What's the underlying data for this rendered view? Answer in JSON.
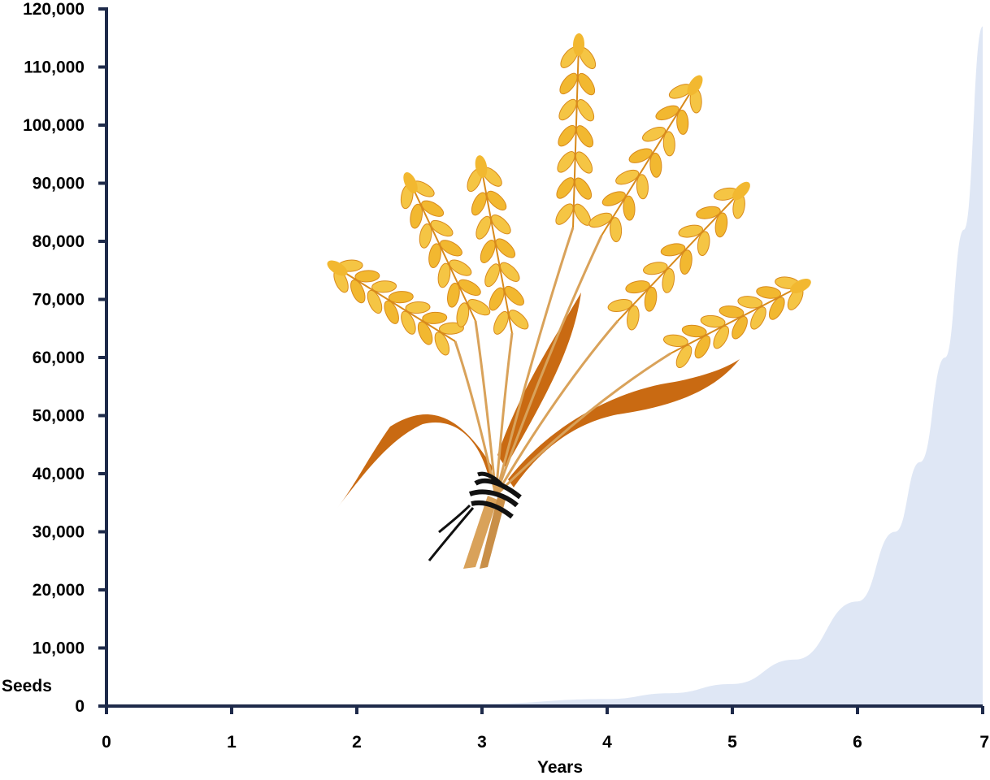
{
  "chart_data": {
    "type": "area",
    "title": "",
    "xlabel": "Years",
    "ylabel": "Seeds",
    "xlim": [
      0,
      7
    ],
    "ylim": [
      0,
      120000
    ],
    "x_ticks": [
      "0",
      "1",
      "2",
      "3",
      "4",
      "5",
      "6",
      "7"
    ],
    "y_ticks": [
      "0",
      "10,000",
      "20,000",
      "30,000",
      "40,000",
      "50,000",
      "60,000",
      "70,000",
      "80,000",
      "90,000",
      "100,000",
      "110,000",
      "120,000"
    ],
    "grid": false,
    "legend": "none",
    "series": [
      {
        "x": [
          0,
          1,
          2,
          3,
          4,
          4.5,
          5,
          5.5,
          6,
          6.3,
          6.5,
          6.7,
          6.85,
          7
        ],
        "values": [
          0,
          0,
          100,
          400,
          1200,
          2200,
          3800,
          8000,
          18000,
          30000,
          42000,
          60000,
          82000,
          117000
        ]
      }
    ],
    "colors": {
      "axis": "#1e2a4a",
      "area_fill": "#dfe7f5",
      "wheat_grain": "#f2b830",
      "wheat_dark": "#d88a1c",
      "leaf": "#c96a12",
      "twine": "#111111"
    },
    "decoration": "wheat-bundle-image"
  }
}
